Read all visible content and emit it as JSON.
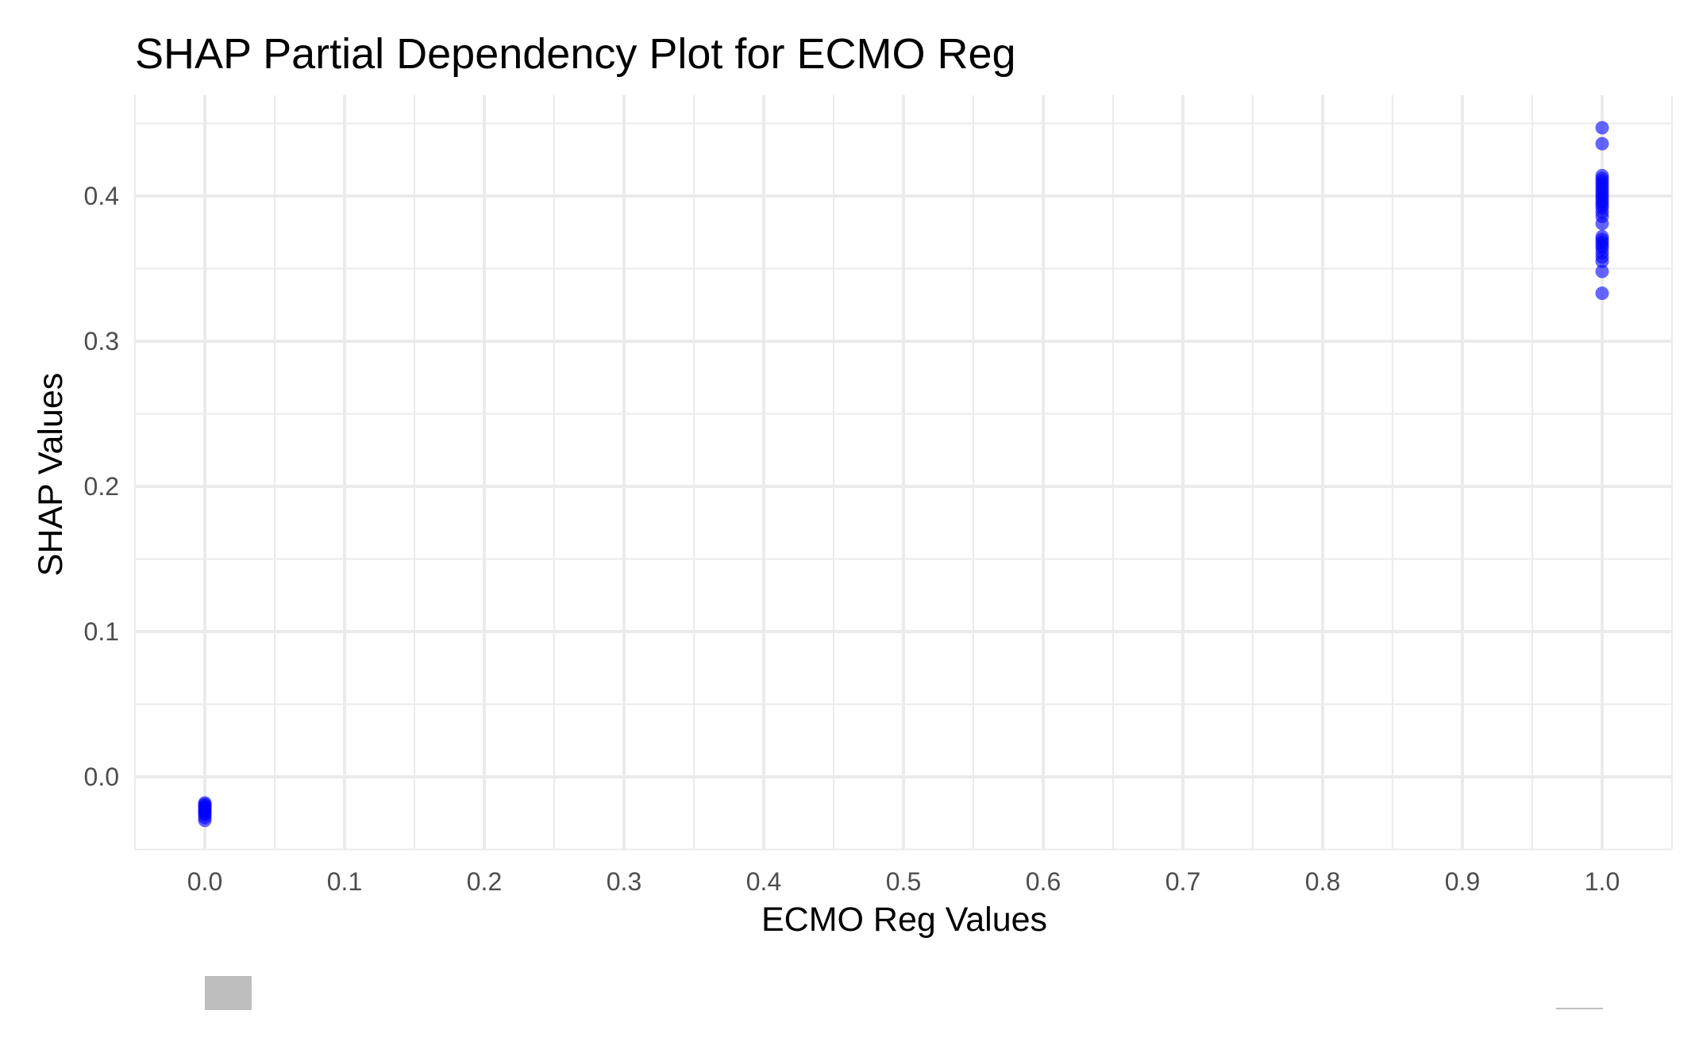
{
  "chart_data": {
    "type": "scatter",
    "title": "SHAP Partial Dependency Plot for ECMO Reg",
    "xlabel": "ECMO Reg Values",
    "ylabel": "SHAP Values",
    "xlim": [
      -0.05,
      1.05
    ],
    "ylim": [
      -0.05,
      0.47
    ],
    "x_ticks": [
      0.0,
      0.1,
      0.2,
      0.3,
      0.4,
      0.5,
      0.6,
      0.7,
      0.8,
      0.9,
      1.0
    ],
    "x_tick_labels": [
      "0.0",
      "0.1",
      "0.2",
      "0.3",
      "0.4",
      "0.5",
      "0.6",
      "0.7",
      "0.8",
      "0.9",
      "1.0"
    ],
    "y_ticks": [
      0.0,
      0.1,
      0.2,
      0.3,
      0.4
    ],
    "y_tick_labels": [
      "0.0",
      "0.1",
      "0.2",
      "0.3",
      "0.4"
    ],
    "grid": true,
    "point_color": "#0000FF",
    "point_opacity": 0.6,
    "legend_key_fill": "#bebebe",
    "legend_line_color": "#bebebe",
    "points": [
      {
        "x": 0,
        "y": -0.018
      },
      {
        "x": 0,
        "y": -0.019
      },
      {
        "x": 0,
        "y": -0.02
      },
      {
        "x": 0,
        "y": -0.021
      },
      {
        "x": 0,
        "y": -0.022
      },
      {
        "x": 0,
        "y": -0.023
      },
      {
        "x": 0,
        "y": -0.024
      },
      {
        "x": 0,
        "y": -0.025
      },
      {
        "x": 0,
        "y": -0.026
      },
      {
        "x": 0,
        "y": -0.028
      },
      {
        "x": 0,
        "y": -0.03
      },
      {
        "x": 1,
        "y": 0.447
      },
      {
        "x": 1,
        "y": 0.436
      },
      {
        "x": 1,
        "y": 0.414
      },
      {
        "x": 1,
        "y": 0.412
      },
      {
        "x": 1,
        "y": 0.41
      },
      {
        "x": 1,
        "y": 0.408
      },
      {
        "x": 1,
        "y": 0.406
      },
      {
        "x": 1,
        "y": 0.404
      },
      {
        "x": 1,
        "y": 0.402
      },
      {
        "x": 1,
        "y": 0.4
      },
      {
        "x": 1,
        "y": 0.398
      },
      {
        "x": 1,
        "y": 0.396
      },
      {
        "x": 1,
        "y": 0.394
      },
      {
        "x": 1,
        "y": 0.392
      },
      {
        "x": 1,
        "y": 0.389
      },
      {
        "x": 1,
        "y": 0.386
      },
      {
        "x": 1,
        "y": 0.381
      },
      {
        "x": 1,
        "y": 0.372
      },
      {
        "x": 1,
        "y": 0.37
      },
      {
        "x": 1,
        "y": 0.368
      },
      {
        "x": 1,
        "y": 0.366
      },
      {
        "x": 1,
        "y": 0.364
      },
      {
        "x": 1,
        "y": 0.361
      },
      {
        "x": 1,
        "y": 0.358
      },
      {
        "x": 1,
        "y": 0.355
      },
      {
        "x": 1,
        "y": 0.348
      },
      {
        "x": 1,
        "y": 0.333
      }
    ]
  }
}
